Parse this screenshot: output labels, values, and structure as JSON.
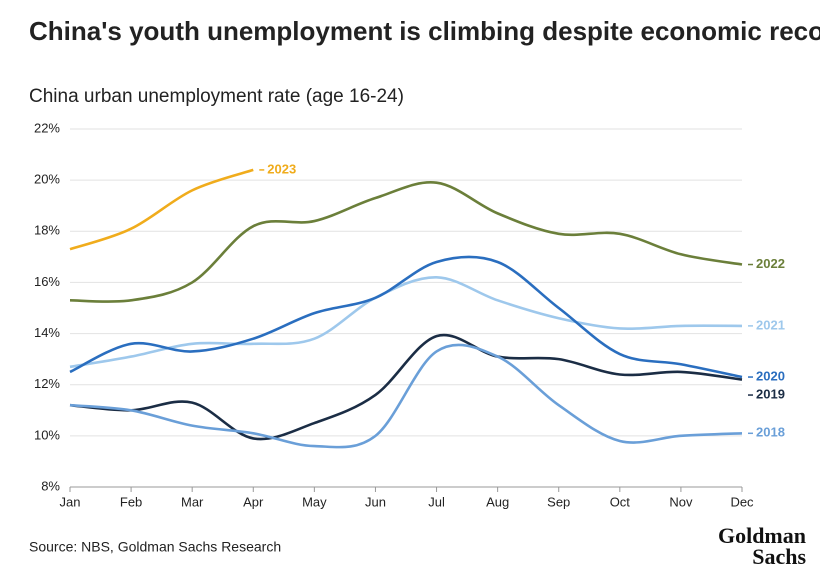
{
  "chart_data": {
    "type": "line",
    "title": "China's youth unemployment is climbing despite economic recovery",
    "subtitle": "China urban unemployment rate (age 16-24)",
    "source": "Source: NBS, Goldman Sachs Research",
    "logo": [
      "Goldman",
      "Sachs"
    ],
    "categories": [
      "Jan",
      "Feb",
      "Mar",
      "Apr",
      "May",
      "Jun",
      "Jul",
      "Aug",
      "Sep",
      "Oct",
      "Nov",
      "Dec"
    ],
    "ylim": [
      8,
      22
    ],
    "yticks": [
      {
        "value": 8,
        "label": "8%"
      },
      {
        "value": 10,
        "label": "10%"
      },
      {
        "value": 12,
        "label": "12%"
      },
      {
        "value": 14,
        "label": "14%"
      },
      {
        "value": 16,
        "label": "16%"
      },
      {
        "value": 18,
        "label": "18%"
      },
      {
        "value": 20,
        "label": "20%"
      },
      {
        "value": 22,
        "label": "22%"
      }
    ],
    "grid": true,
    "series": [
      {
        "name": "2023",
        "color": "#f0ac1c",
        "values": [
          17.3,
          18.1,
          19.6,
          20.4,
          null,
          null,
          null,
          null,
          null,
          null,
          null,
          null
        ]
      },
      {
        "name": "2022",
        "color": "#6b7f3a",
        "values": [
          15.3,
          15.3,
          16.0,
          18.2,
          18.4,
          19.3,
          19.9,
          18.7,
          17.9,
          17.9,
          17.1,
          16.7
        ]
      },
      {
        "name": "2021",
        "color": "#9ec8ec",
        "values": [
          12.7,
          13.1,
          13.6,
          13.6,
          13.8,
          15.4,
          16.2,
          15.3,
          14.6,
          14.2,
          14.3,
          14.3
        ]
      },
      {
        "name": "2020",
        "color": "#2a6ebf",
        "values": [
          12.5,
          13.6,
          13.3,
          13.8,
          14.8,
          15.4,
          16.8,
          16.8,
          15.0,
          13.2,
          12.8,
          12.3
        ]
      },
      {
        "name": "2019",
        "color": "#1b2d45",
        "values": [
          11.2,
          11.0,
          11.3,
          9.9,
          10.5,
          11.6,
          13.9,
          13.1,
          13.0,
          12.4,
          12.5,
          12.2
        ]
      },
      {
        "name": "2018",
        "color": "#6a9fd8",
        "values": [
          11.2,
          11.0,
          10.4,
          10.1,
          9.6,
          10.0,
          13.3,
          13.1,
          11.2,
          9.8,
          10.0,
          10.1
        ]
      }
    ]
  }
}
